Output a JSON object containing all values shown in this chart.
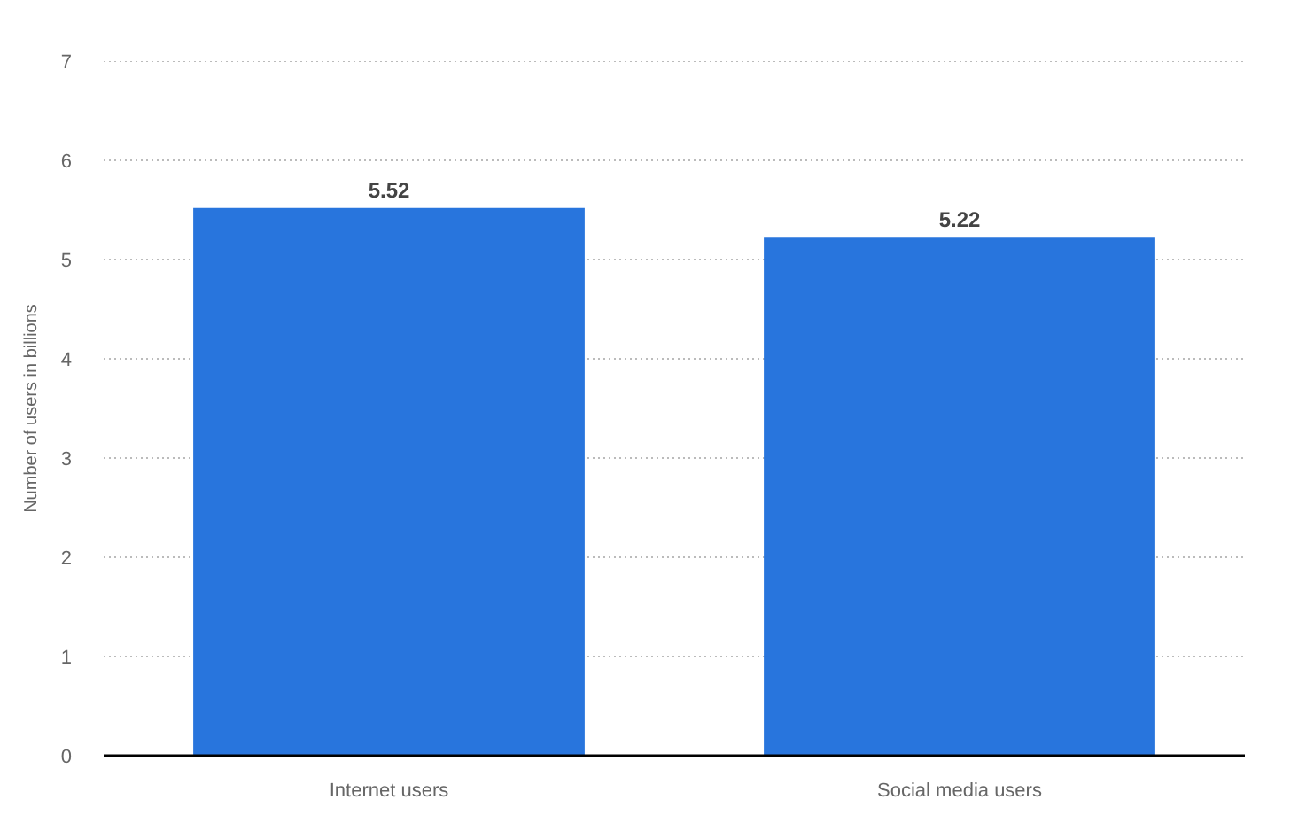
{
  "chart_data": {
    "type": "bar",
    "ylabel": "Number of users in billions",
    "categories": [
      "Internet users",
      "Social media users"
    ],
    "values": [
      5.52,
      5.22
    ],
    "color": "#2875dd",
    "ylim": [
      0,
      7
    ],
    "yticks": [
      0,
      1,
      2,
      3,
      4,
      5,
      6,
      7
    ],
    "grid": "y",
    "data_labels": true
  }
}
